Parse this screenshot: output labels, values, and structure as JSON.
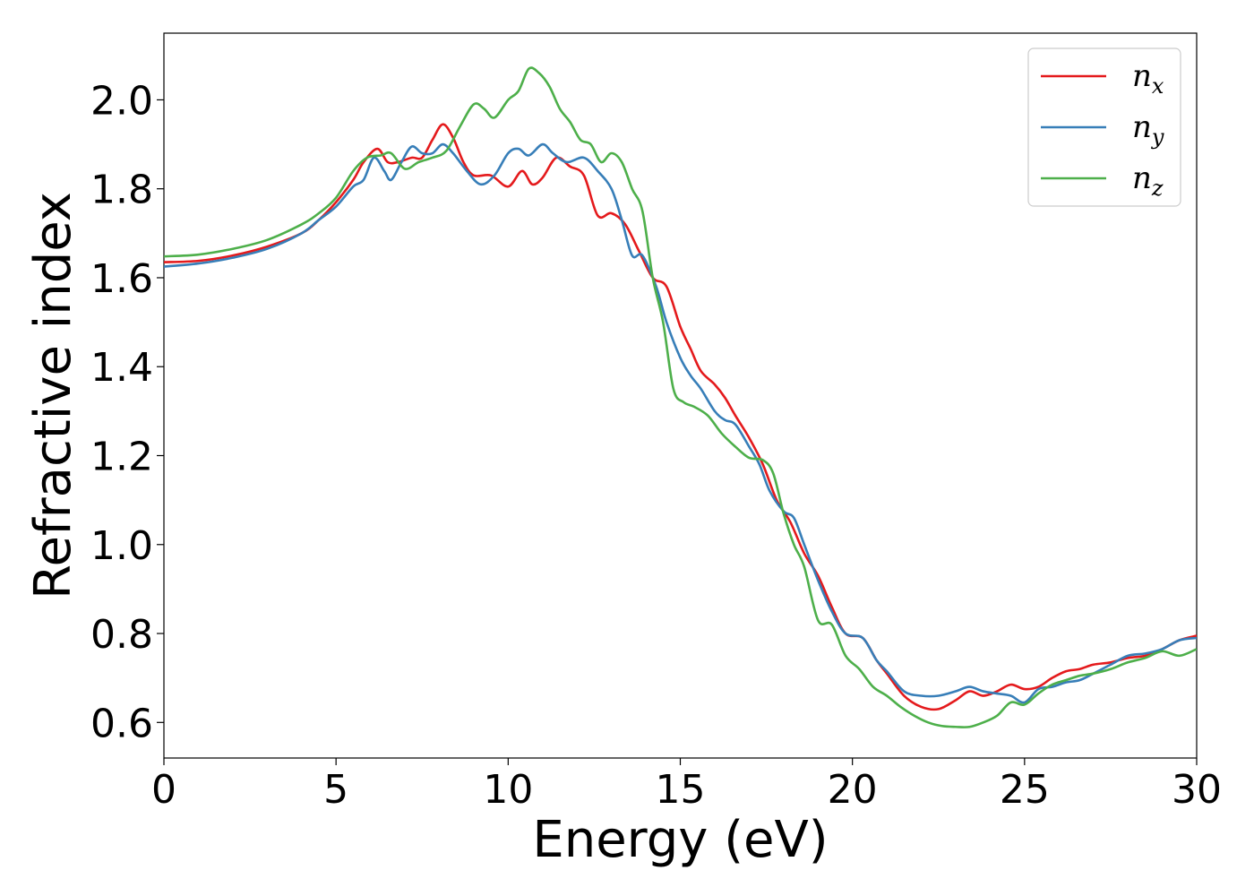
{
  "chart_data": {
    "type": "line",
    "title": "",
    "xlabel": "Energy (eV)",
    "ylabel": "Refractive index",
    "xlim": [
      0,
      30
    ],
    "ylim": [
      0.52,
      2.15
    ],
    "xticks": [
      "0",
      "5",
      "10",
      "15",
      "20",
      "25",
      "30"
    ],
    "yticks": [
      "0.6",
      "0.8",
      "1.0",
      "1.2",
      "1.4",
      "1.6",
      "1.8",
      "2.0"
    ],
    "grid": false,
    "legend_position": "top-right",
    "series": [
      {
        "name": "n_x",
        "label_base": "n",
        "label_sub": "x",
        "color": "#e41a1c",
        "points": [
          [
            0,
            1.635
          ],
          [
            1,
            1.638
          ],
          [
            2,
            1.65
          ],
          [
            3,
            1.67
          ],
          [
            4,
            1.7
          ],
          [
            4.5,
            1.73
          ],
          [
            5,
            1.77
          ],
          [
            5.5,
            1.82
          ],
          [
            5.8,
            1.86
          ],
          [
            6.2,
            1.89
          ],
          [
            6.5,
            1.86
          ],
          [
            6.8,
            1.86
          ],
          [
            7.2,
            1.87
          ],
          [
            7.5,
            1.87
          ],
          [
            7.8,
            1.91
          ],
          [
            8.1,
            1.945
          ],
          [
            8.4,
            1.915
          ],
          [
            8.7,
            1.86
          ],
          [
            9,
            1.83
          ],
          [
            9.5,
            1.83
          ],
          [
            10,
            1.805
          ],
          [
            10.4,
            1.84
          ],
          [
            10.7,
            1.81
          ],
          [
            11,
            1.825
          ],
          [
            11.4,
            1.87
          ],
          [
            11.8,
            1.85
          ],
          [
            12.2,
            1.83
          ],
          [
            12.6,
            1.74
          ],
          [
            13,
            1.745
          ],
          [
            13.4,
            1.72
          ],
          [
            13.8,
            1.66
          ],
          [
            14.2,
            1.6
          ],
          [
            14.6,
            1.58
          ],
          [
            15,
            1.49
          ],
          [
            15.3,
            1.44
          ],
          [
            15.6,
            1.39
          ],
          [
            16,
            1.36
          ],
          [
            16.3,
            1.33
          ],
          [
            16.6,
            1.29
          ],
          [
            17,
            1.24
          ],
          [
            17.4,
            1.18
          ],
          [
            17.8,
            1.1
          ],
          [
            18.2,
            1.05
          ],
          [
            18.6,
            0.98
          ],
          [
            19,
            0.93
          ],
          [
            19.4,
            0.86
          ],
          [
            19.8,
            0.8
          ],
          [
            20.3,
            0.79
          ],
          [
            20.7,
            0.74
          ],
          [
            21,
            0.71
          ],
          [
            21.5,
            0.66
          ],
          [
            22,
            0.635
          ],
          [
            22.5,
            0.63
          ],
          [
            23,
            0.65
          ],
          [
            23.4,
            0.67
          ],
          [
            23.8,
            0.66
          ],
          [
            24.2,
            0.67
          ],
          [
            24.6,
            0.685
          ],
          [
            25,
            0.675
          ],
          [
            25.4,
            0.68
          ],
          [
            25.8,
            0.7
          ],
          [
            26.2,
            0.715
          ],
          [
            26.6,
            0.72
          ],
          [
            27,
            0.73
          ],
          [
            27.5,
            0.735
          ],
          [
            28,
            0.745
          ],
          [
            28.5,
            0.75
          ],
          [
            29,
            0.765
          ],
          [
            29.5,
            0.785
          ],
          [
            30,
            0.795
          ]
        ]
      },
      {
        "name": "n_y",
        "label_base": "n",
        "label_sub": "y",
        "color": "#377eb8",
        "points": [
          [
            0,
            1.625
          ],
          [
            1,
            1.632
          ],
          [
            2,
            1.645
          ],
          [
            3,
            1.665
          ],
          [
            4,
            1.7
          ],
          [
            4.5,
            1.73
          ],
          [
            5,
            1.76
          ],
          [
            5.5,
            1.805
          ],
          [
            5.8,
            1.82
          ],
          [
            6.1,
            1.87
          ],
          [
            6.4,
            1.84
          ],
          [
            6.6,
            1.82
          ],
          [
            6.9,
            1.86
          ],
          [
            7.2,
            1.895
          ],
          [
            7.5,
            1.88
          ],
          [
            7.8,
            1.88
          ],
          [
            8.1,
            1.9
          ],
          [
            8.4,
            1.88
          ],
          [
            8.8,
            1.84
          ],
          [
            9.2,
            1.81
          ],
          [
            9.6,
            1.83
          ],
          [
            10,
            1.88
          ],
          [
            10.3,
            1.89
          ],
          [
            10.6,
            1.875
          ],
          [
            11,
            1.9
          ],
          [
            11.3,
            1.88
          ],
          [
            11.7,
            1.86
          ],
          [
            12.2,
            1.87
          ],
          [
            12.6,
            1.84
          ],
          [
            13,
            1.8
          ],
          [
            13.3,
            1.73
          ],
          [
            13.6,
            1.65
          ],
          [
            13.9,
            1.65
          ],
          [
            14.3,
            1.58
          ],
          [
            14.6,
            1.5
          ],
          [
            15,
            1.42
          ],
          [
            15.3,
            1.38
          ],
          [
            15.6,
            1.35
          ],
          [
            16,
            1.3
          ],
          [
            16.3,
            1.28
          ],
          [
            16.6,
            1.27
          ],
          [
            17,
            1.22
          ],
          [
            17.3,
            1.18
          ],
          [
            17.6,
            1.12
          ],
          [
            18,
            1.075
          ],
          [
            18.3,
            1.06
          ],
          [
            18.6,
            1.0
          ],
          [
            19,
            0.92
          ],
          [
            19.4,
            0.85
          ],
          [
            19.8,
            0.8
          ],
          [
            20.3,
            0.79
          ],
          [
            20.7,
            0.74
          ],
          [
            21,
            0.715
          ],
          [
            21.5,
            0.67
          ],
          [
            22,
            0.66
          ],
          [
            22.5,
            0.66
          ],
          [
            23,
            0.67
          ],
          [
            23.4,
            0.68
          ],
          [
            23.8,
            0.67
          ],
          [
            24.2,
            0.665
          ],
          [
            24.6,
            0.66
          ],
          [
            25,
            0.645
          ],
          [
            25.4,
            0.675
          ],
          [
            25.8,
            0.68
          ],
          [
            26.2,
            0.69
          ],
          [
            26.6,
            0.695
          ],
          [
            27,
            0.71
          ],
          [
            27.5,
            0.73
          ],
          [
            28,
            0.75
          ],
          [
            28.5,
            0.755
          ],
          [
            29,
            0.765
          ],
          [
            29.5,
            0.785
          ],
          [
            30,
            0.79
          ]
        ]
      },
      {
        "name": "n_z",
        "label_base": "n",
        "label_sub": "z",
        "color": "#4daf4a",
        "points": [
          [
            0,
            1.648
          ],
          [
            1,
            1.652
          ],
          [
            2,
            1.665
          ],
          [
            3,
            1.685
          ],
          [
            4,
            1.72
          ],
          [
            4.5,
            1.745
          ],
          [
            5,
            1.78
          ],
          [
            5.5,
            1.84
          ],
          [
            5.9,
            1.87
          ],
          [
            6.3,
            1.875
          ],
          [
            6.6,
            1.88
          ],
          [
            7,
            1.845
          ],
          [
            7.4,
            1.86
          ],
          [
            7.8,
            1.87
          ],
          [
            8.2,
            1.885
          ],
          [
            8.6,
            1.94
          ],
          [
            9,
            1.99
          ],
          [
            9.3,
            1.98
          ],
          [
            9.6,
            1.96
          ],
          [
            10,
            2.0
          ],
          [
            10.3,
            2.02
          ],
          [
            10.6,
            2.07
          ],
          [
            10.9,
            2.06
          ],
          [
            11.2,
            2.03
          ],
          [
            11.5,
            1.98
          ],
          [
            11.8,
            1.95
          ],
          [
            12.1,
            1.91
          ],
          [
            12.4,
            1.9
          ],
          [
            12.7,
            1.86
          ],
          [
            13,
            1.88
          ],
          [
            13.3,
            1.86
          ],
          [
            13.6,
            1.8
          ],
          [
            13.9,
            1.75
          ],
          [
            14.2,
            1.6
          ],
          [
            14.5,
            1.5
          ],
          [
            14.8,
            1.35
          ],
          [
            15.1,
            1.32
          ],
          [
            15.4,
            1.31
          ],
          [
            15.8,
            1.29
          ],
          [
            16.2,
            1.25
          ],
          [
            16.6,
            1.22
          ],
          [
            17,
            1.195
          ],
          [
            17.4,
            1.19
          ],
          [
            17.7,
            1.16
          ],
          [
            18,
            1.07
          ],
          [
            18.3,
            1.0
          ],
          [
            18.6,
            0.95
          ],
          [
            19,
            0.83
          ],
          [
            19.4,
            0.82
          ],
          [
            19.8,
            0.75
          ],
          [
            20.2,
            0.72
          ],
          [
            20.6,
            0.68
          ],
          [
            21,
            0.66
          ],
          [
            21.4,
            0.635
          ],
          [
            21.8,
            0.615
          ],
          [
            22.2,
            0.6
          ],
          [
            22.6,
            0.592
          ],
          [
            23,
            0.59
          ],
          [
            23.4,
            0.59
          ],
          [
            23.8,
            0.6
          ],
          [
            24.2,
            0.615
          ],
          [
            24.6,
            0.645
          ],
          [
            25,
            0.64
          ],
          [
            25.4,
            0.665
          ],
          [
            25.8,
            0.685
          ],
          [
            26.2,
            0.695
          ],
          [
            26.6,
            0.705
          ],
          [
            27,
            0.71
          ],
          [
            27.5,
            0.72
          ],
          [
            28,
            0.735
          ],
          [
            28.5,
            0.745
          ],
          [
            29,
            0.76
          ],
          [
            29.5,
            0.75
          ],
          [
            30,
            0.765
          ]
        ]
      }
    ]
  }
}
